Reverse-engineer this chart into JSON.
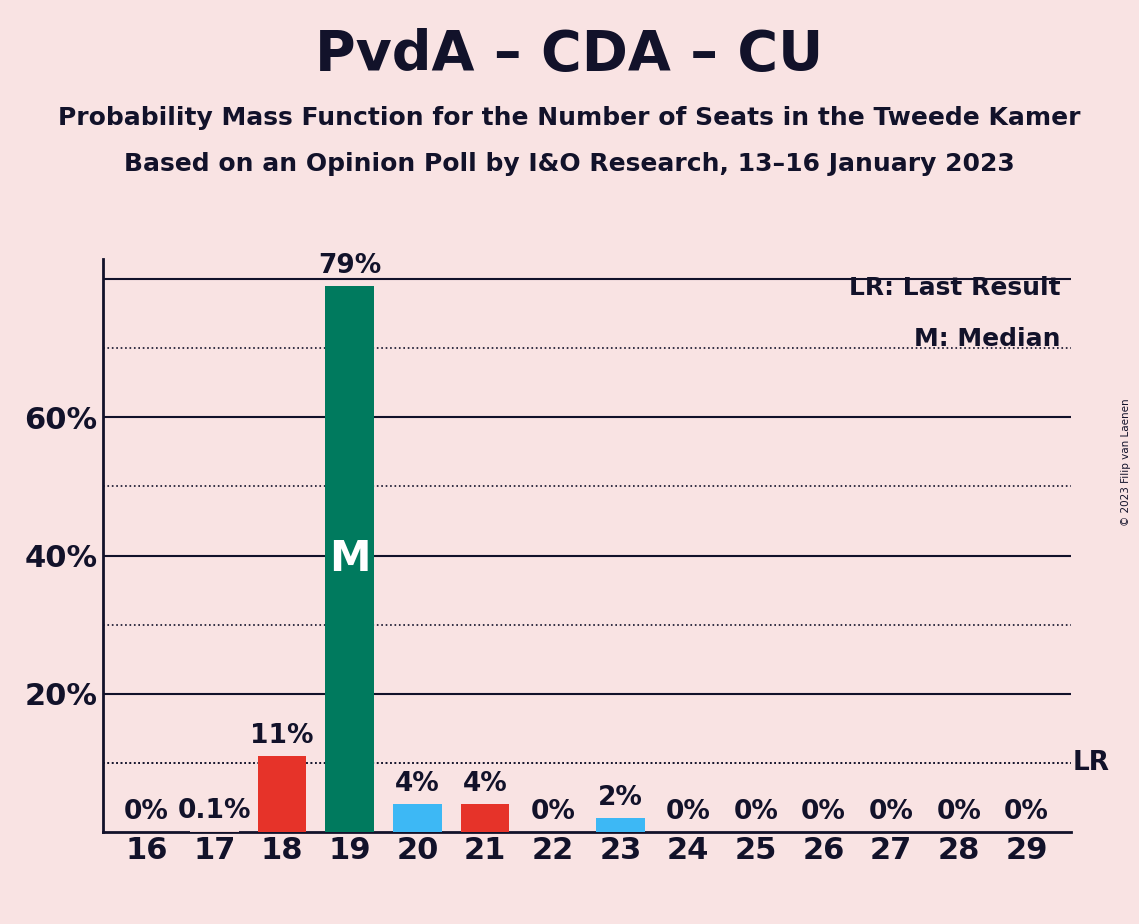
{
  "title": "PvdA – CDA – CU",
  "subtitle1": "Probability Mass Function for the Number of Seats in the Tweede Kamer",
  "subtitle2": "Based on an Opinion Poll by I&O Research, 13–16 January 2023",
  "copyright": "© 2023 Filip van Laenen",
  "legend_lr": "LR: Last Result",
  "legend_m": "M: Median",
  "seats": [
    16,
    17,
    18,
    19,
    20,
    21,
    22,
    23,
    24,
    25,
    26,
    27,
    28,
    29
  ],
  "probabilities": [
    0.0,
    0.1,
    11.0,
    79.0,
    4.0,
    4.0,
    0.0,
    2.0,
    0.0,
    0.0,
    0.0,
    0.0,
    0.0,
    0.0
  ],
  "bar_colors": [
    "#f0d0d0",
    "#f0d0d0",
    "#e63329",
    "#007a5e",
    "#3db8f5",
    "#e63329",
    "#f0d0d0",
    "#3db8f5",
    "#f0d0d0",
    "#f0d0d0",
    "#f0d0d0",
    "#f0d0d0",
    "#f0d0d0",
    "#f0d0d0"
  ],
  "median_seat": 19,
  "last_result_prob": 10.0,
  "background_color": "#f9e3e3",
  "ylim": [
    0,
    83
  ],
  "solid_grid_ticks": [
    20,
    40,
    60,
    80
  ],
  "dotted_grid_ticks": [
    10,
    30,
    50,
    70
  ],
  "ylabel_ticks": [
    20,
    40,
    60
  ],
  "bar_width": 0.72,
  "title_fontsize": 40,
  "subtitle_fontsize": 18,
  "tick_fontsize": 22,
  "annotation_fontsize": 19,
  "median_label_fontsize": 30,
  "text_color": "#12122a",
  "grid_solid_color": "#12122a",
  "grid_dotted_color": "#12122a",
  "axis_color": "#12122a"
}
